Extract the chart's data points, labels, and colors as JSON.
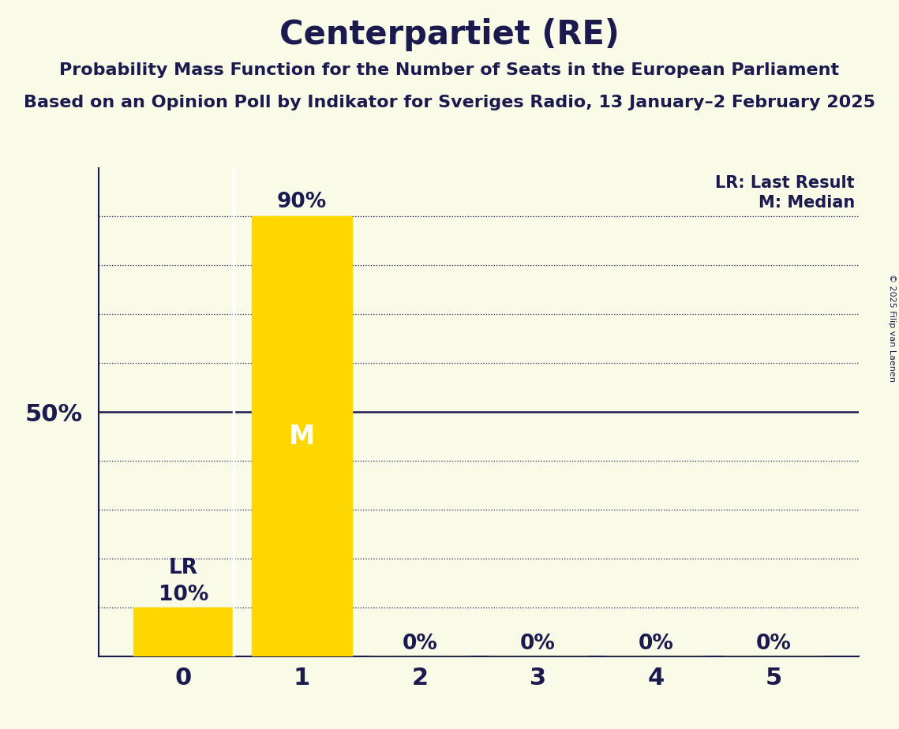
{
  "title": "Centerpartiet (RE)",
  "subtitle1": "Probability Mass Function for the Number of Seats in the European Parliament",
  "subtitle2": "Based on an Opinion Poll by Indikator for Sveriges Radio, 13 January–2 February 2025",
  "copyright": "© 2025 Filip van Laenen",
  "categories": [
    0,
    1,
    2,
    3,
    4,
    5
  ],
  "values": [
    0.1,
    0.9,
    0.0,
    0.0,
    0.0,
    0.0
  ],
  "bar_color": "#FFD700",
  "background_color": "#FAFAE8",
  "text_color": "#1a1a4e",
  "median": 1,
  "last_result": 0,
  "ylim": [
    0,
    1.0
  ],
  "legend_lr": "LR: Last Result",
  "legend_m": "M: Median",
  "title_fontsize": 30,
  "subtitle_fontsize": 16,
  "label_fontsize": 19,
  "tick_fontsize": 22,
  "ytick_fontsize": 22,
  "copyright_fontsize": 8,
  "median_label_fontsize": 24,
  "dotted_yticks": [
    0.1,
    0.2,
    0.3,
    0.4,
    0.6,
    0.7,
    0.8,
    0.9
  ],
  "solid_ytick": 0.5
}
